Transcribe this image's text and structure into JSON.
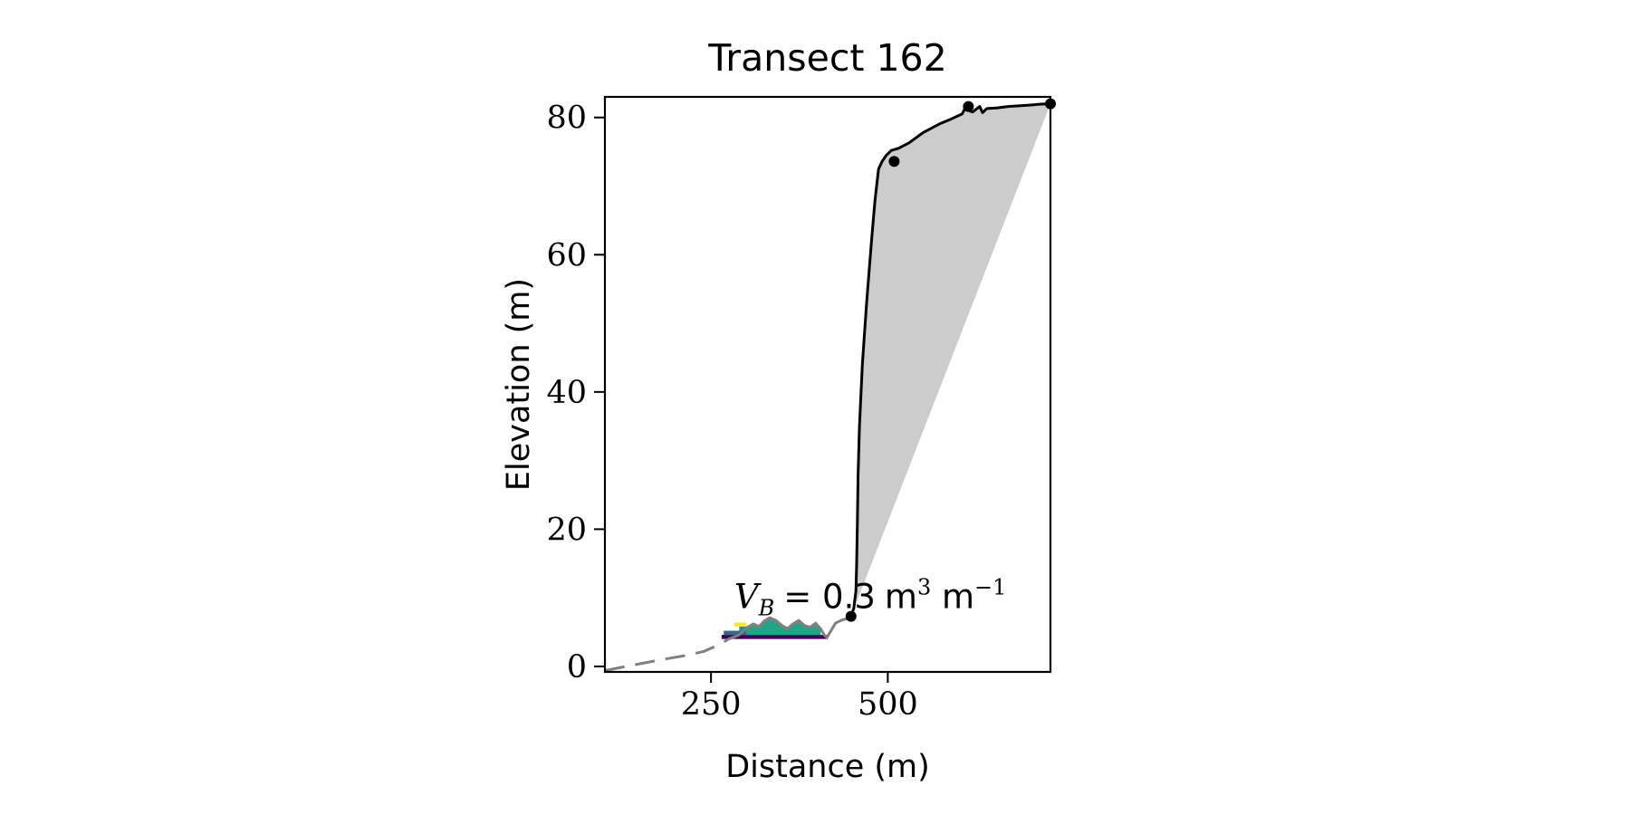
{
  "chart_data": {
    "type": "line",
    "title": "Transect 162",
    "xlabel": "Distance (m)",
    "ylabel": "Elevation (m)",
    "xlim": [
      100,
      730
    ],
    "ylim": [
      -0.8,
      83
    ],
    "xticks": [
      250,
      500
    ],
    "yticks": [
      0,
      20,
      40,
      60,
      80
    ],
    "grid": false,
    "annotation": {
      "prefix": "V",
      "subscript": "B",
      "equals": "= ",
      "value": "0.3",
      "unit_m": "m",
      "unit_m_exp": "3",
      "unit_per": " m",
      "unit_per_exp": "−1",
      "x": 283,
      "y": 8.5
    },
    "profile_nearshore": {
      "name": "",
      "color": "#808080",
      "style": "dashed",
      "points": [
        [
          100,
          -0.6
        ],
        [
          140,
          0.2
        ],
        [
          180,
          1.0
        ],
        [
          215,
          1.6
        ],
        [
          240,
          2.2
        ],
        [
          262,
          3.2
        ],
        [
          275,
          4.0
        ],
        [
          290,
          4.6
        ]
      ]
    },
    "profile_beach": {
      "name": "",
      "color": "#808080",
      "style": "solid",
      "points": [
        [
          290,
          4.6
        ],
        [
          300,
          5.6
        ],
        [
          310,
          6.2
        ],
        [
          318,
          5.8
        ],
        [
          325,
          6.6
        ],
        [
          333,
          7.1
        ],
        [
          342,
          6.7
        ],
        [
          350,
          6.0
        ],
        [
          358,
          5.5
        ],
        [
          366,
          6.2
        ],
        [
          374,
          6.7
        ],
        [
          382,
          6.0
        ],
        [
          390,
          5.7
        ],
        [
          398,
          6.3
        ],
        [
          405,
          5.5
        ],
        [
          410,
          4.6
        ],
        [
          414,
          4.2
        ],
        [
          418,
          4.9
        ],
        [
          426,
          6.3
        ],
        [
          436,
          6.8
        ],
        [
          445,
          7.0
        ],
        [
          448,
          7.3
        ]
      ]
    },
    "profile_cliff": {
      "name": "",
      "color": "#000000",
      "style": "solid",
      "points": [
        [
          448,
          7.3
        ],
        [
          452,
          8.5
        ],
        [
          455,
          11
        ],
        [
          456,
          15
        ],
        [
          457,
          21
        ],
        [
          458,
          28
        ],
        [
          460,
          35
        ],
        [
          464,
          44
        ],
        [
          470,
          53
        ],
        [
          477,
          62
        ],
        [
          482,
          68
        ],
        [
          487,
          72.5
        ],
        [
          492,
          73.6
        ],
        [
          498,
          74.5
        ],
        [
          505,
          75.2
        ],
        [
          515,
          75.5
        ],
        [
          530,
          76.3
        ],
        [
          550,
          77.8
        ],
        [
          572,
          79.0
        ],
        [
          590,
          79.8
        ],
        [
          605,
          80.5
        ],
        [
          610,
          81.5
        ],
        [
          615,
          81.0
        ],
        [
          620,
          80.8
        ],
        [
          625,
          81.2
        ],
        [
          630,
          81.6
        ],
        [
          634,
          80.7
        ],
        [
          640,
          81.3
        ],
        [
          655,
          81.4
        ],
        [
          670,
          81.6
        ],
        [
          685,
          81.7
        ],
        [
          700,
          81.8
        ],
        [
          712,
          81.9
        ],
        [
          725,
          82.0
        ]
      ]
    },
    "markers": [
      [
        448,
        7.3
      ],
      [
        509,
        73.6
      ],
      [
        614,
        81.6
      ],
      [
        730,
        82.0
      ]
    ],
    "shaded_area": {
      "color": "#cccccc",
      "base_line": [
        [
          448,
          7.3
        ],
        [
          730,
          82.0
        ]
      ]
    },
    "sediment_bars": [
      {
        "color": "#440154",
        "x": [
          265,
          415
        ],
        "y": [
          4.0,
          4.6
        ]
      },
      {
        "color": "#31688e",
        "x": [
          268,
          405
        ],
        "y": [
          4.6,
          5.2
        ]
      },
      {
        "color": "#21918c",
        "x": [
          290,
          395
        ],
        "y": [
          5.2,
          5.8
        ]
      },
      {
        "color": "#fde725",
        "x": [
          283,
          300
        ],
        "y": [
          5.8,
          6.4
        ]
      }
    ],
    "sediment_fill": {
      "color": "#21a585",
      "top": [
        [
          300,
          5.6
        ],
        [
          310,
          6.2
        ],
        [
          318,
          5.8
        ],
        [
          325,
          6.6
        ],
        [
          333,
          7.1
        ],
        [
          342,
          6.7
        ],
        [
          350,
          6.0
        ],
        [
          358,
          5.5
        ],
        [
          366,
          6.2
        ],
        [
          374,
          6.7
        ],
        [
          382,
          6.0
        ],
        [
          390,
          5.7
        ],
        [
          398,
          6.3
        ],
        [
          405,
          5.5
        ]
      ],
      "base": 4.6
    }
  }
}
